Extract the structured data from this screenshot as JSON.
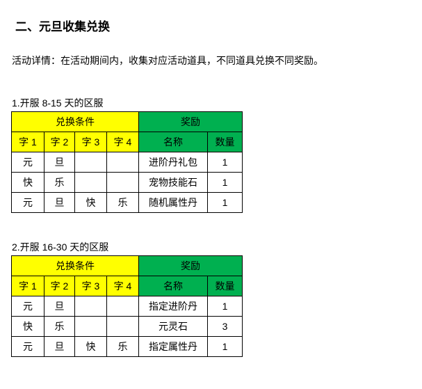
{
  "page": {
    "title": "二、元旦收集兑换",
    "description": "活动详情：在活动期间内，收集对应活动道具，不同道具兑换不同奖励。"
  },
  "colors": {
    "condition_header_bg": "#FFFF00",
    "reward_header_bg": "#00B050",
    "border": "#000000",
    "text": "#000000"
  },
  "sections": [
    {
      "label": "1.开服 8-15 天的区服",
      "table": {
        "group_headers": [
          {
            "label": "兑换条件",
            "span": 4
          },
          {
            "label": "奖励",
            "span": 2
          }
        ],
        "columns": [
          "字 1",
          "字 2",
          "字 3",
          "字 4",
          "名称",
          "数量"
        ],
        "rows": [
          [
            "元",
            "旦",
            "",
            "",
            "进阶丹礼包",
            "1"
          ],
          [
            "快",
            "乐",
            "",
            "",
            "宠物技能石",
            "1"
          ],
          [
            "元",
            "旦",
            "快",
            "乐",
            "随机属性丹",
            "1"
          ]
        ]
      }
    },
    {
      "label": "2.开服 16-30 天的区服",
      "table": {
        "group_headers": [
          {
            "label": "兑换条件",
            "span": 4
          },
          {
            "label": "奖励",
            "span": 2
          }
        ],
        "columns": [
          "字 1",
          "字 2",
          "字 3",
          "字 4",
          "名称",
          "数量"
        ],
        "rows": [
          [
            "元",
            "旦",
            "",
            "",
            "指定进阶丹",
            "1"
          ],
          [
            "快",
            "乐",
            "",
            "",
            "元灵石",
            "3"
          ],
          [
            "元",
            "旦",
            "快",
            "乐",
            "指定属性丹",
            "1"
          ]
        ]
      }
    }
  ]
}
